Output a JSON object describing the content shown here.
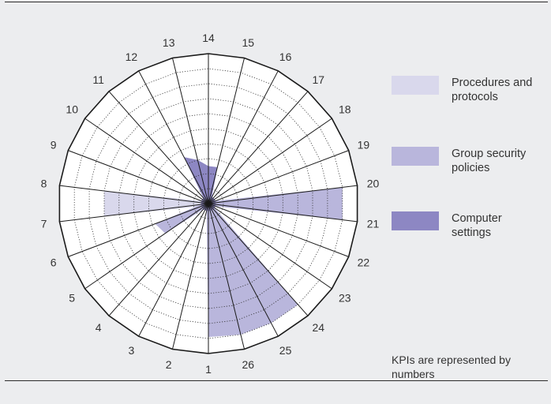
{
  "chart_data": {
    "type": "radar",
    "axes": [
      "1",
      "2",
      "3",
      "4",
      "5",
      "6",
      "7",
      "8",
      "9",
      "10",
      "11",
      "12",
      "13",
      "14",
      "15",
      "16",
      "17",
      "18",
      "19",
      "20",
      "21",
      "22",
      "23",
      "24",
      "25",
      "26"
    ],
    "rings": 10,
    "rlim": [
      0,
      10
    ],
    "grid": true,
    "legend_position": "right",
    "series": [
      {
        "name": "Procedures and protocols",
        "color": "#d9d8ec",
        "values": [
          0.5,
          0.5,
          0.5,
          0.5,
          0.5,
          0.5,
          7.0,
          7.0,
          0.5,
          0.5,
          0.5,
          0.5,
          0.5,
          0.5,
          0.5,
          0.5,
          0.5,
          0.5,
          0.5,
          0.5,
          0.5,
          0.5,
          0.5,
          0.5,
          0.5,
          0.5
        ]
      },
      {
        "name": "Group security policies",
        "color": "#b9b6dc",
        "values": [
          8.9,
          0.5,
          0.5,
          0.5,
          3.5,
          3.8,
          0.5,
          0.5,
          0.5,
          0.5,
          0.5,
          0.5,
          0.5,
          0.5,
          0.5,
          0.5,
          0.5,
          0.5,
          0.5,
          9.0,
          9.0,
          0.5,
          0.5,
          9.0,
          9.0,
          9.0
        ]
      },
      {
        "name": "Computer settings",
        "color": "#8d87c3",
        "values": [
          0.5,
          0.5,
          0.5,
          0.5,
          0.5,
          0.5,
          0.5,
          0.5,
          0.5,
          0.5,
          0.5,
          3.5,
          3.0,
          2.5,
          2.5,
          0.5,
          0.5,
          0.5,
          0.5,
          0.5,
          0.5,
          0.5,
          0.5,
          0.5,
          0.5,
          0.5
        ]
      }
    ]
  },
  "legend": [
    {
      "label": "Procedures and protocols",
      "color": "#d9d8ec"
    },
    {
      "label": "Group security policies",
      "color": "#b9b6dc"
    },
    {
      "label": "Computer settings",
      "color": "#8d87c3"
    }
  ],
  "note": "KPIs are represented by numbers"
}
